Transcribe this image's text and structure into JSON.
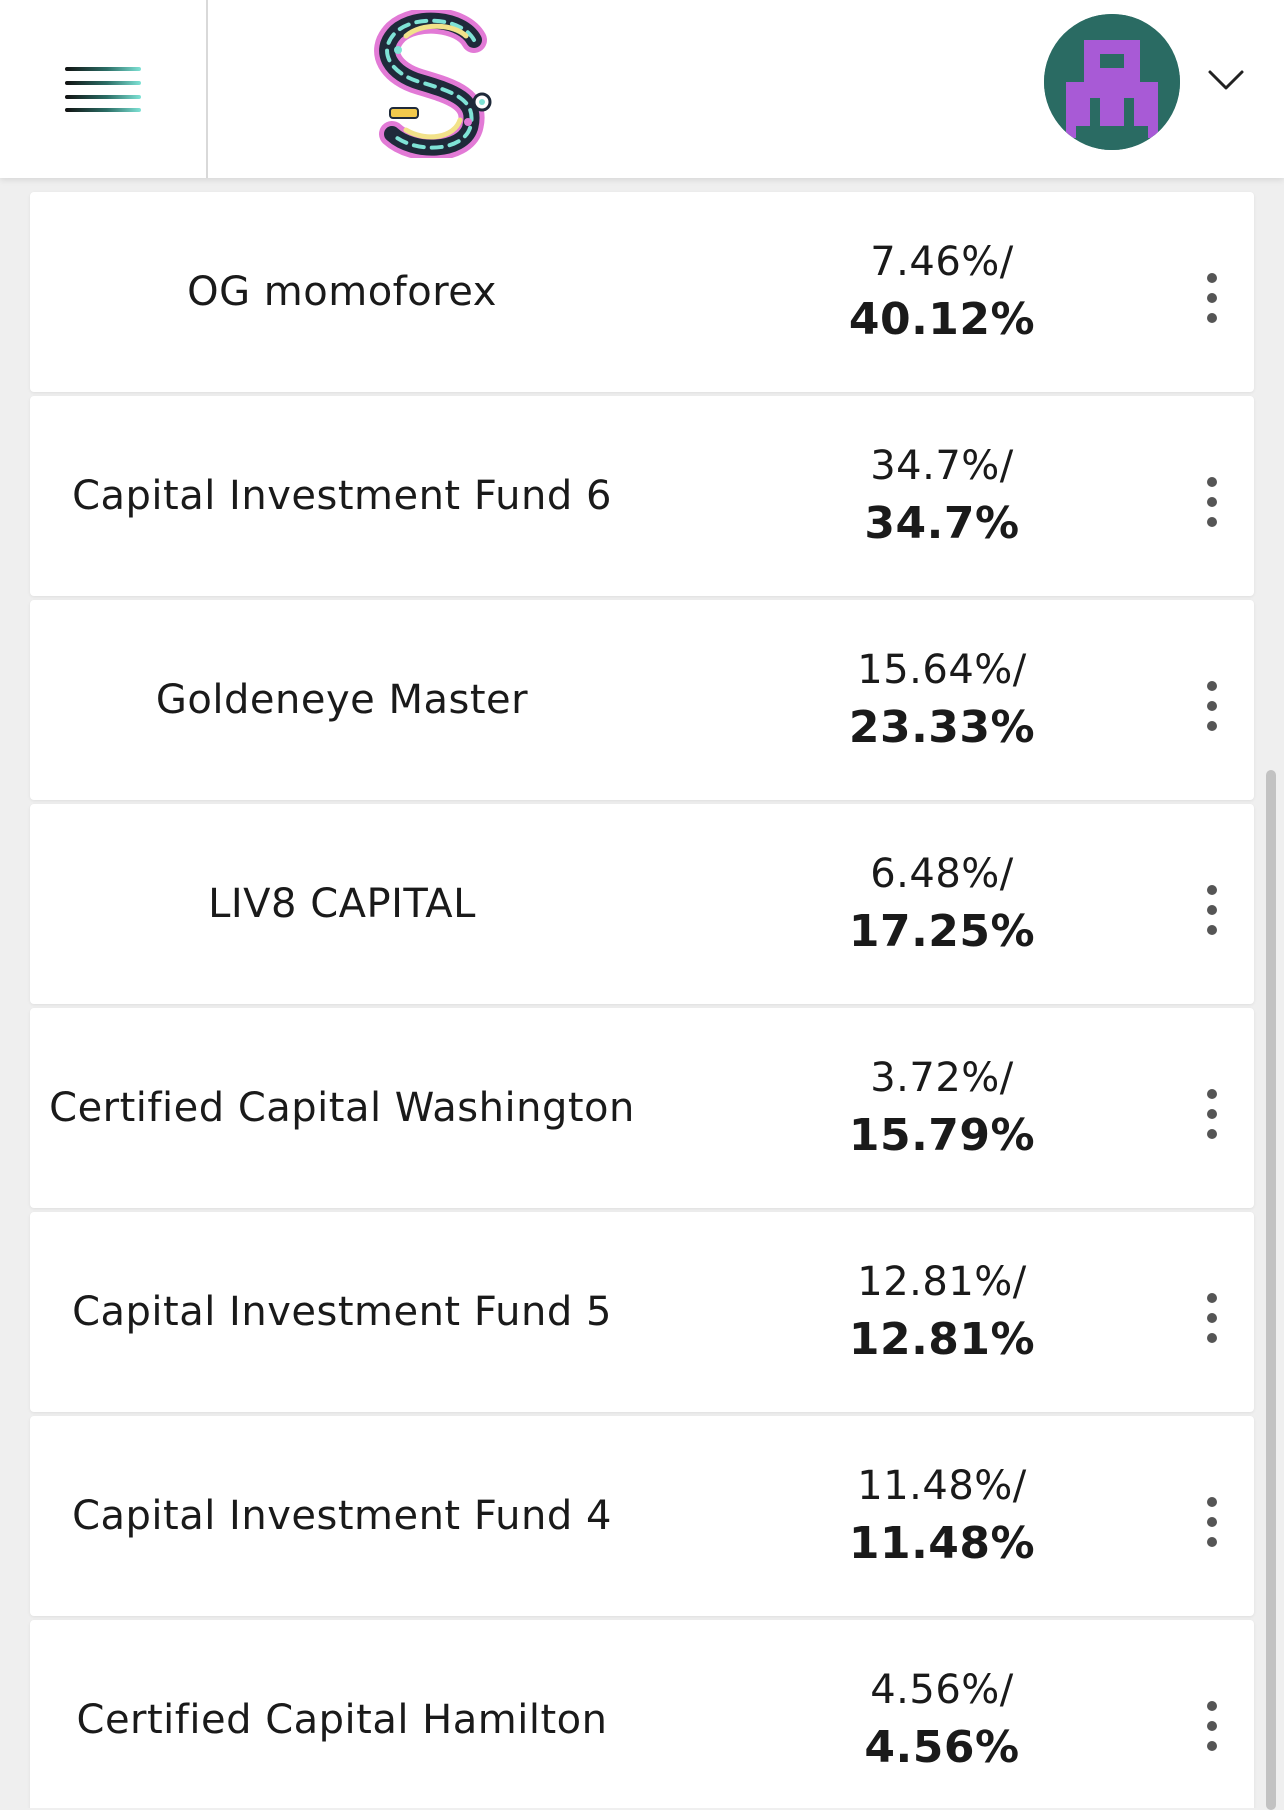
{
  "header": {
    "menu_icon": "hamburger-icon",
    "logo_icon": "s-logo",
    "avatar_icon": "pixel-avatar",
    "dropdown_icon": "chevron-down-icon"
  },
  "colors": {
    "accent": "#3fcfc0",
    "avatar_bg": "#2a6b63",
    "avatar_fg": "#a85ad6"
  },
  "rows": [
    {
      "name": "OG momoforex",
      "value_a": "7.46%/",
      "value_b": "40.12%"
    },
    {
      "name": "Capital Investment Fund 6",
      "value_a": "34.7%/",
      "value_b": "34.7%"
    },
    {
      "name": "Goldeneye Master",
      "value_a": "15.64%/",
      "value_b": "23.33%"
    },
    {
      "name": "LIV8 CAPITAL",
      "value_a": "6.48%/",
      "value_b": "17.25%"
    },
    {
      "name": "Certified Capital Washington",
      "value_a": "3.72%/",
      "value_b": "15.79%"
    },
    {
      "name": "Capital Investment Fund 5",
      "value_a": "12.81%/",
      "value_b": "12.81%"
    },
    {
      "name": "Capital Investment Fund 4",
      "value_a": "11.48%/",
      "value_b": "11.48%"
    },
    {
      "name": "Certified Capital Hamilton",
      "value_a": "4.56%/",
      "value_b": "4.56%"
    }
  ]
}
